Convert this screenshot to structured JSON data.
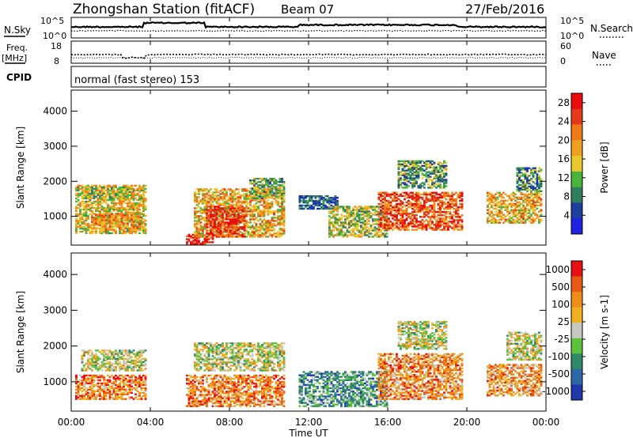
{
  "header": {
    "title": "Zhongshan Station (fitACF)",
    "beam": "Beam 07",
    "date": "27/Feb/2016"
  },
  "noise_panel": {
    "left_label": "N.Sky",
    "right_label": "N.Search",
    "left_ticks": [
      "10^5",
      "10^0"
    ],
    "right_ticks": [
      "10^5",
      "10^0"
    ]
  },
  "freq_panel": {
    "left_label_1": "Freq.",
    "left_label_2": "[MHz]",
    "right_label": "Nave",
    "left_ticks": [
      "18",
      "8"
    ],
    "right_ticks": [
      "60",
      "0"
    ]
  },
  "cpid": {
    "label": "CPID",
    "text": "normal (fast stereo) 153"
  },
  "colors": {
    "power_scale": [
      "#1f22e0",
      "#1f3f9e",
      "#2f7f5f",
      "#49b43c",
      "#e8c82a",
      "#f0a020",
      "#f07a18",
      "#e53a18",
      "#e80c0c"
    ],
    "velocity_scale": [
      "#1e3aa8",
      "#2c68a6",
      "#2f8a6a",
      "#5cc23a",
      "#c8c8c0",
      "#f0b020",
      "#f08c18",
      "#e85a14",
      "#e81010"
    ]
  },
  "chart_data": [
    {
      "type": "heatmap",
      "title": "",
      "xlabel": "Time UT",
      "ylabel": "Slant Range [km]",
      "x_ticks": [
        "00:00",
        "04:00",
        "08:00",
        "12:00",
        "16:00",
        "20:00",
        "00:00"
      ],
      "y_ticks": [
        "1000",
        "2000",
        "3000",
        "4000"
      ],
      "xlim": [
        0,
        24
      ],
      "ylim": [
        180,
        4600
      ],
      "colorbar": {
        "label": "Power [dB]",
        "ticks": [
          "4",
          "8",
          "12",
          "16",
          "20",
          "24",
          "28"
        ],
        "range": [
          0,
          30
        ]
      },
      "regions": [
        {
          "t0": 0.2,
          "t1": 3.8,
          "r0": 500,
          "r1": 1900,
          "level": 0.55
        },
        {
          "t0": 0.5,
          "t1": 3.0,
          "r0": 1500,
          "r1": 1850,
          "level": 0.45
        },
        {
          "t0": 1.0,
          "t1": 3.5,
          "r0": 600,
          "r1": 1100,
          "level": 0.65
        },
        {
          "t0": 5.8,
          "t1": 7.2,
          "r0": 200,
          "r1": 500,
          "level": 0.95
        },
        {
          "t0": 6.2,
          "t1": 10.8,
          "r0": 400,
          "r1": 1800,
          "level": 0.6
        },
        {
          "t0": 6.8,
          "t1": 8.8,
          "r0": 400,
          "r1": 1300,
          "level": 0.9
        },
        {
          "t0": 9.0,
          "t1": 10.8,
          "r0": 1500,
          "r1": 2100,
          "level": 0.4
        },
        {
          "t0": 11.5,
          "t1": 13.5,
          "r0": 1200,
          "r1": 1600,
          "level": 0.2
        },
        {
          "t0": 13.0,
          "t1": 16.0,
          "r0": 400,
          "r1": 1300,
          "level": 0.45
        },
        {
          "t0": 15.5,
          "t1": 19.8,
          "r0": 600,
          "r1": 1700,
          "level": 0.8
        },
        {
          "t0": 16.5,
          "t1": 19.0,
          "r0": 1800,
          "r1": 2600,
          "level": 0.35
        },
        {
          "t0": 21.0,
          "t1": 23.8,
          "r0": 800,
          "r1": 1700,
          "level": 0.6
        },
        {
          "t0": 22.5,
          "t1": 23.8,
          "r0": 1700,
          "r1": 2400,
          "level": 0.3
        }
      ]
    },
    {
      "type": "heatmap",
      "title": "",
      "xlabel": "Time UT",
      "ylabel": "Slant Range [km]",
      "x_ticks": [
        "00:00",
        "04:00",
        "08:00",
        "12:00",
        "16:00",
        "20:00",
        "00:00"
      ],
      "y_ticks": [
        "1000",
        "2000",
        "3000",
        "4000"
      ],
      "xlim": [
        0,
        24
      ],
      "ylim": [
        180,
        4600
      ],
      "colorbar": {
        "label": "Velocity [m s-1]",
        "ticks": [
          "1000",
          "500",
          "100",
          "25",
          "-25",
          "-100",
          "-500",
          "-1000"
        ],
        "range": [
          -1200,
          1200
        ]
      },
      "regions": [
        {
          "t0": 0.5,
          "t1": 3.8,
          "r0": 1300,
          "r1": 1900,
          "level": 0.5
        },
        {
          "t0": 0.2,
          "t1": 3.8,
          "r0": 500,
          "r1": 1200,
          "level": 0.75
        },
        {
          "t0": 5.8,
          "t1": 10.8,
          "r0": 300,
          "r1": 1200,
          "level": 0.75
        },
        {
          "t0": 6.2,
          "t1": 10.8,
          "r0": 1300,
          "r1": 2100,
          "level": 0.5
        },
        {
          "t0": 11.5,
          "t1": 16.0,
          "r0": 300,
          "r1": 1300,
          "level": 0.3
        },
        {
          "t0": 15.5,
          "t1": 19.8,
          "r0": 500,
          "r1": 1800,
          "level": 0.72
        },
        {
          "t0": 16.5,
          "t1": 19.0,
          "r0": 1900,
          "r1": 2700,
          "level": 0.5
        },
        {
          "t0": 21.0,
          "t1": 23.8,
          "r0": 600,
          "r1": 1500,
          "level": 0.7
        },
        {
          "t0": 22.0,
          "t1": 23.8,
          "r0": 1600,
          "r1": 2400,
          "level": 0.5
        }
      ]
    }
  ]
}
